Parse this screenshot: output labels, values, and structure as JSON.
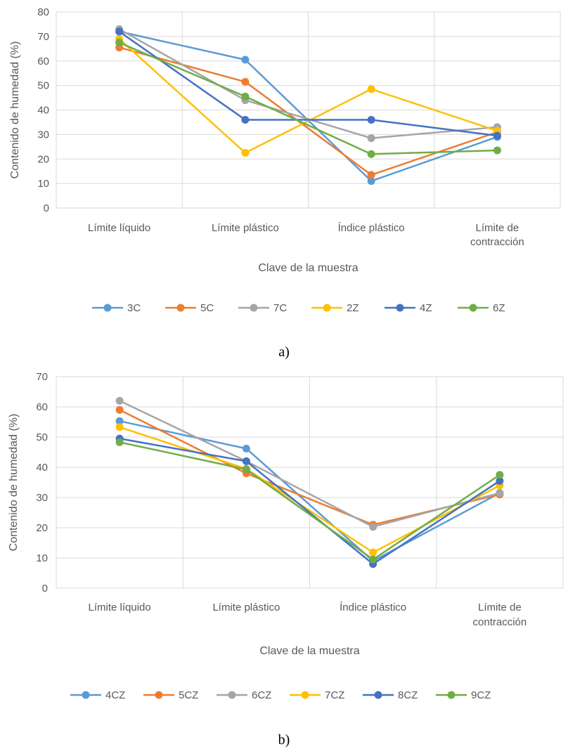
{
  "chart_data": [
    {
      "type": "line",
      "caption": "a)",
      "categories": [
        "Límite líquido",
        "Límite plástico",
        "Índice plástico",
        "Límite de contracción"
      ],
      "category_lines": [
        [
          "Límite líquido"
        ],
        [
          "Límite plástico"
        ],
        [
          "Índice plástico"
        ],
        [
          "Límite de",
          "contracción"
        ]
      ],
      "xlabel": "Clave de la muestra",
      "ylabel": "Contenido de humedad (%)",
      "ylim": [
        0,
        80
      ],
      "yticks": [
        0,
        10,
        20,
        30,
        40,
        50,
        60,
        70,
        80
      ],
      "grid": "both",
      "legend": "bottom",
      "series": [
        {
          "name": "3C",
          "color": "#5B9BD5",
          "values": [
            72,
            60.5,
            11,
            29
          ]
        },
        {
          "name": "5C",
          "color": "#ED7D31",
          "values": [
            65.5,
            51.5,
            13.5,
            31
          ]
        },
        {
          "name": "7C",
          "color": "#A5A5A5",
          "values": [
            73,
            44,
            28.5,
            33
          ]
        },
        {
          "name": "2Z",
          "color": "#FFC000",
          "values": [
            69,
            22.5,
            48.5,
            31.5
          ]
        },
        {
          "name": "4Z",
          "color": "#4472C4",
          "values": [
            72,
            36,
            36,
            29.5
          ]
        },
        {
          "name": "6Z",
          "color": "#70AD47",
          "values": [
            67.5,
            45.5,
            22,
            23.5
          ]
        }
      ]
    },
    {
      "type": "line",
      "caption": "b)",
      "categories": [
        "Límite líquido",
        "Límite plástico",
        "Índice plástico",
        "Límite de contracción"
      ],
      "category_lines": [
        [
          "Límite líquido"
        ],
        [
          "Límite plástico"
        ],
        [
          "Índice plástico"
        ],
        [
          "Límite de",
          "contracción"
        ]
      ],
      "xlabel": "Clave de la muestra",
      "ylabel": "Contenido de humedad (%)",
      "ylim": [
        0,
        70
      ],
      "yticks": [
        0,
        10,
        20,
        30,
        40,
        50,
        60,
        70
      ],
      "grid": "both",
      "legend": "bottom",
      "series": [
        {
          "name": "4CZ",
          "color": "#5B9BD5",
          "values": [
            55.3,
            46.2,
            9,
            31.5
          ]
        },
        {
          "name": "5CZ",
          "color": "#ED7D31",
          "values": [
            59,
            38,
            21,
            31
          ]
        },
        {
          "name": "6CZ",
          "color": "#A5A5A5",
          "values": [
            62,
            42,
            20.3,
            31.5
          ]
        },
        {
          "name": "7CZ",
          "color": "#FFC000",
          "values": [
            53.3,
            39.5,
            11.8,
            34
          ]
        },
        {
          "name": "8CZ",
          "color": "#4472C4",
          "values": [
            49.5,
            42,
            8,
            35.5
          ]
        },
        {
          "name": "9CZ",
          "color": "#70AD47",
          "values": [
            48.3,
            39.3,
            9.5,
            37.5
          ]
        }
      ]
    }
  ]
}
